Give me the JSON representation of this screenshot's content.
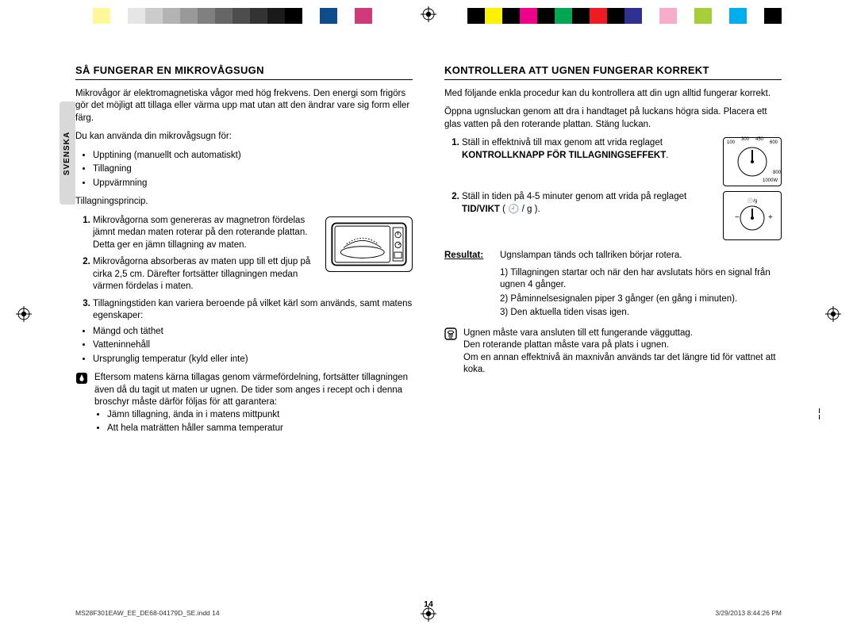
{
  "colorbars": {
    "left": [
      "#ffffff",
      "#fff79a",
      "#ffffff",
      "#e6e6e6",
      "#cccccc",
      "#b3b3b3",
      "#999999",
      "#808080",
      "#666666",
      "#4d4d4d",
      "#333333",
      "#1a1a1a",
      "#000000",
      "#ffffff",
      "#0e4d8c",
      "#ffffff",
      "#d13a7a",
      "#ffffff"
    ],
    "right": [
      "#000000",
      "#fff200",
      "#000000",
      "#ec008c",
      "#000000",
      "#00a651",
      "#000000",
      "#ed1c24",
      "#000000",
      "#2e3192",
      "#ffffff",
      "#f7adc9",
      "#ffffff",
      "#a6ce39",
      "#ffffff",
      "#00aeef",
      "#ffffff",
      "#000000"
    ]
  },
  "lang_tab": "SVENSKA",
  "left_col": {
    "heading": "SÅ FUNGERAR EN MIKROVÅGSUGN",
    "intro": "Mikrovågor är elektromagnetiska vågor med hög frekvens. Den energi som frigörs gör det möjligt att tillaga eller värma upp mat utan att den ändrar vare sig form eller färg.",
    "use_intro": "Du kan använda din mikrovågsugn för:",
    "use_bullets": [
      "Upptining (manuellt och automatiskt)",
      "Tillagning",
      "Uppvärmning"
    ],
    "principle_label": "Tillagningsprincip.",
    "steps": [
      "Mikrovågorna som genereras av magnetron fördelas jämnt medan maten roterar på den roterande plattan. Detta ger en jämn tillagning av maten.",
      "Mikrovågorna absorberas av maten upp till ett djup på cirka 2,5 cm. Därefter fortsätter tillagningen medan värmen fördelas i maten.",
      "Tillagningstiden kan variera beroende på vilket kärl som används, samt matens egenskaper:"
    ],
    "step3_bullets": [
      "Mängd och täthet",
      "Vatteninnehåll",
      "Ursprunglig temperatur (kyld eller inte)"
    ],
    "note": "Eftersom matens kärna tillagas genom värmefördelning, fortsätter tillagningen även då du tagit ut maten ur ugnen. De tider som anges i recept och i denna broschyr måste därför följas för att garantera:",
    "note_bullets": [
      "Jämn tillagning, ända in i matens mittpunkt",
      "Att hela maträtten håller samma temperatur"
    ]
  },
  "right_col": {
    "heading": "KONTROLLERA ATT UGNEN FUNGERAR KORREKT",
    "p1": "Med följande enkla procedur kan du kontrollera att din ugn alltid fungerar korrekt.",
    "p2": "Öppna ugnsluckan genom att dra i handtaget på luckans högra sida. Placera ett glas vatten på den roterande plattan. Stäng luckan.",
    "step1_a": "Ställ in effektnivå till max genom att vrida reglaget ",
    "step1_b": "KONTROLLKNAPP FÖR TILLAGNINGSEFFEKT",
    "dial1_labels": [
      "100",
      "300",
      "450",
      "600",
      "800",
      "1000W"
    ],
    "step2_a": "Ställ in tiden på 4-5 minuter genom att vrida på reglaget ",
    "step2_b": "TID/VIKT",
    "step2_c": " ( 🕘 / g ).",
    "result_label": "Resultat:",
    "result_lead": "Ugnslampan tänds och tallriken börjar rotera.",
    "result_items": [
      "Tillagningen startar och när den har avslutats hörs en signal från ugnen 4 gånger.",
      "Påminnelsesignalen piper 3 gånger (en gång i minuten).",
      "Den aktuella tiden visas igen."
    ],
    "note2_l1": "Ugnen måste vara ansluten till ett fungerande vägguttag.",
    "note2_l2": "Den roterande plattan måste vara på plats i ugnen.",
    "note2_l3": "Om en annan effektnivå än maxnivån används tar det längre tid för vattnet att koka."
  },
  "page_number": "14",
  "footer": {
    "file": "MS28F301EAW_EE_DE68-04179D_SE.indd   14",
    "stamp": "3/29/2013   8:44:26 PM"
  },
  "colors": {
    "text": "#000000",
    "rule": "#000000",
    "tab": "#d9d9d9"
  }
}
